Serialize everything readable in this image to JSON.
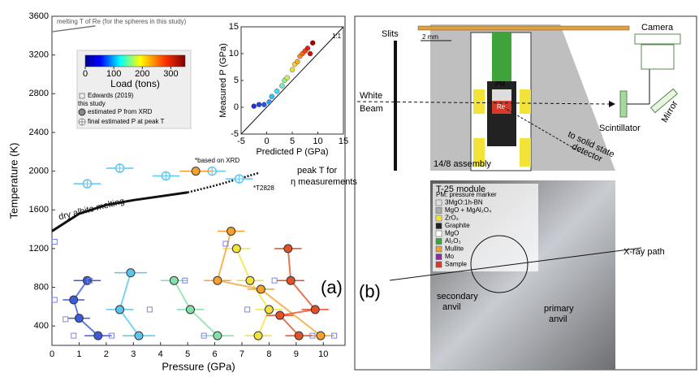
{
  "chart_data": [
    {
      "type": "scatter",
      "xlabel": "Pressure (GPa)",
      "ylabel": "Temperature (K)",
      "xlim": [
        0,
        10.8
      ],
      "ylim": [
        200,
        3600
      ],
      "xticks": [
        0,
        1,
        2,
        3,
        4,
        5,
        6,
        7,
        8,
        9,
        10
      ],
      "yticks": [
        400,
        800,
        1200,
        1600,
        2000,
        2400,
        2800,
        3200,
        3600
      ],
      "series": [
        {
          "color": "#3b5bdb",
          "marker": "circle",
          "x": [
            1.7,
            1.0,
            0.8,
            1.3
          ],
          "values": [
            300,
            480,
            670,
            870
          ],
          "xerr": [
            0.5,
            0.4,
            0.4,
            0.5
          ]
        },
        {
          "color": "#5cc6f0",
          "marker": "circle",
          "x": [
            3.2,
            2.5,
            2.9
          ],
          "values": [
            300,
            570,
            950
          ],
          "xerr": [
            0.6,
            0.5,
            0.6
          ]
        },
        {
          "color": "#82e0a8",
          "marker": "circle",
          "x": [
            6.1,
            5.1,
            4.5
          ],
          "values": [
            300,
            570,
            870
          ],
          "xerr": [
            0.6,
            0.5,
            0.5
          ]
        },
        {
          "color": "#f3e23c",
          "marker": "circle",
          "x": [
            7.6,
            8.0,
            7.3,
            6.8
          ],
          "values": [
            300,
            570,
            870,
            1200
          ],
          "xerr": [
            0.5,
            0.5,
            0.5,
            0.5
          ]
        },
        {
          "color": "#f4a22c",
          "marker": "circle",
          "x": [
            9.9,
            7.7,
            6.1,
            6.6
          ],
          "values": [
            300,
            780,
            870,
            1380
          ],
          "xerr": [
            0.5,
            0.5,
            0.5,
            0.5
          ]
        },
        {
          "color": "#e2512a",
          "marker": "circle",
          "x": [
            9.1,
            8.4,
            9.7,
            8.8,
            8.7
          ],
          "values": [
            300,
            510,
            570,
            870,
            1200
          ],
          "xerr": [
            0.5,
            0.5,
            0.5,
            0.5,
            0.5
          ]
        },
        {
          "color": "#5cc6f0",
          "marker": "crossed",
          "x": [
            1.3,
            2.5,
            4.2,
            5.9,
            6.9
          ],
          "values": [
            1870,
            2030,
            1950,
            2000,
            1920
          ],
          "xerr": [
            0.5,
            0.5,
            0.5,
            0.5,
            0.5
          ]
        },
        {
          "color": "#f4a22c",
          "marker": "circle",
          "x": [
            5.3
          ],
          "values": [
            2000
          ],
          "xerr": [
            0.6
          ]
        },
        {
          "color": "#7b86e0",
          "marker": "square",
          "x": [
            0.1,
            0.1,
            0.5,
            0.8,
            1.4,
            2.2,
            3.6,
            4.9,
            5.6,
            6.4,
            7.2,
            8.2,
            9.6,
            10.4
          ],
          "values": [
            1270,
            670,
            470,
            300,
            870,
            300,
            570,
            870,
            300,
            1250,
            570,
            870,
            300,
            300
          ]
        }
      ],
      "lines": [
        {
          "name": "dry albite melting",
          "color": "#111111",
          "style": "solid",
          "x": [
            0,
            1,
            2,
            3,
            4,
            5
          ],
          "values": [
            1380,
            1560,
            1650,
            1700,
            1740,
            1780
          ]
        },
        {
          "color": "#111111",
          "style": "dotted",
          "x": [
            5,
            6,
            7,
            7.6
          ],
          "values": [
            1780,
            1850,
            1930,
            1980
          ]
        },
        {
          "name": "melting T of Re (for the spheres in this study)",
          "color": "#777777",
          "style": "solid",
          "x": [
            0,
            1.6
          ],
          "values": [
            3440,
            3500
          ]
        }
      ],
      "annotations": [
        "*based on XRD",
        "*T2828",
        "peak T for",
        "η measurements",
        "(a)"
      ]
    },
    {
      "type": "scatter",
      "xlabel": "Predicted P (GPa)",
      "ylabel": "Measured P (GPa)",
      "xlim": [
        -5,
        15
      ],
      "ylim": [
        -5,
        15
      ],
      "xticks": [
        -5,
        0,
        5,
        10,
        15
      ],
      "yticks": [
        -5,
        0,
        5,
        10,
        15
      ],
      "label_1to1": "1:1",
      "x": [
        -2.5,
        -1.5,
        -0.5,
        0.5,
        1,
        2,
        3,
        3.5,
        4,
        5,
        5.5,
        6,
        6.5,
        7,
        7.5,
        8,
        8.5,
        9
      ],
      "values": [
        0.2,
        0.5,
        0.5,
        1,
        2,
        3,
        4,
        5,
        5.5,
        7,
        8,
        8.5,
        9.5,
        10,
        10.5,
        11,
        10,
        12
      ],
      "colors": [
        "#2233cc",
        "#2244dd",
        "#2255ee",
        "#3399ff",
        "#33bbff",
        "#44ddff",
        "#66eecc",
        "#99ee88",
        "#ccee55",
        "#eedd33",
        "#ffcc33",
        "#ffaa22",
        "#ff8822",
        "#ff6611",
        "#ee4411",
        "#dd2211",
        "#cc1111",
        "#aa0000"
      ],
      "colorbar": {
        "label": "Load (tons)",
        "lim": [
          0,
          350
        ],
        "ticks": [
          0,
          100,
          200,
          300
        ]
      },
      "legend": [
        "Edwards (2019)",
        "this study",
        "estimated P from XRD",
        "final estimated P at peak T"
      ]
    }
  ],
  "diagram": {
    "labels": {
      "slits": "Slits",
      "scale": "2 mm",
      "camera": "Camera",
      "beam1": "White",
      "beam2": "Beam",
      "pm": "PM",
      "re": "Re",
      "scint": "Scintillator",
      "mirror": "Mirror",
      "det1": "to solid state",
      "det2": "detector",
      "assembly": "14/8 assembly",
      "module": "T-25 module",
      "xray": "X-ray path",
      "sec1": "secondary",
      "sec2": "anvil",
      "pri1": "primary",
      "pri2": "anvil",
      "panel": "(b)"
    },
    "materials": [
      {
        "name": "PM: pressure marker",
        "color": null
      },
      {
        "name": "3MgO:1h-BN",
        "color": "#dddddd"
      },
      {
        "name": "MgO + MgAl₂O₄",
        "color": "#aaaaaa"
      },
      {
        "name": "ZrO₂",
        "color": "#f2e33a"
      },
      {
        "name": "Graphite",
        "color": "#222222"
      },
      {
        "name": "MgO",
        "color": "#ffffff"
      },
      {
        "name": "Al₂O₃",
        "color": "#3fa33c"
      },
      {
        "name": "Mullite",
        "color": "#f0a030"
      },
      {
        "name": "Mo",
        "color": "#8a2f9c"
      },
      {
        "name": "Sample",
        "color": "#d63a2a"
      }
    ]
  }
}
